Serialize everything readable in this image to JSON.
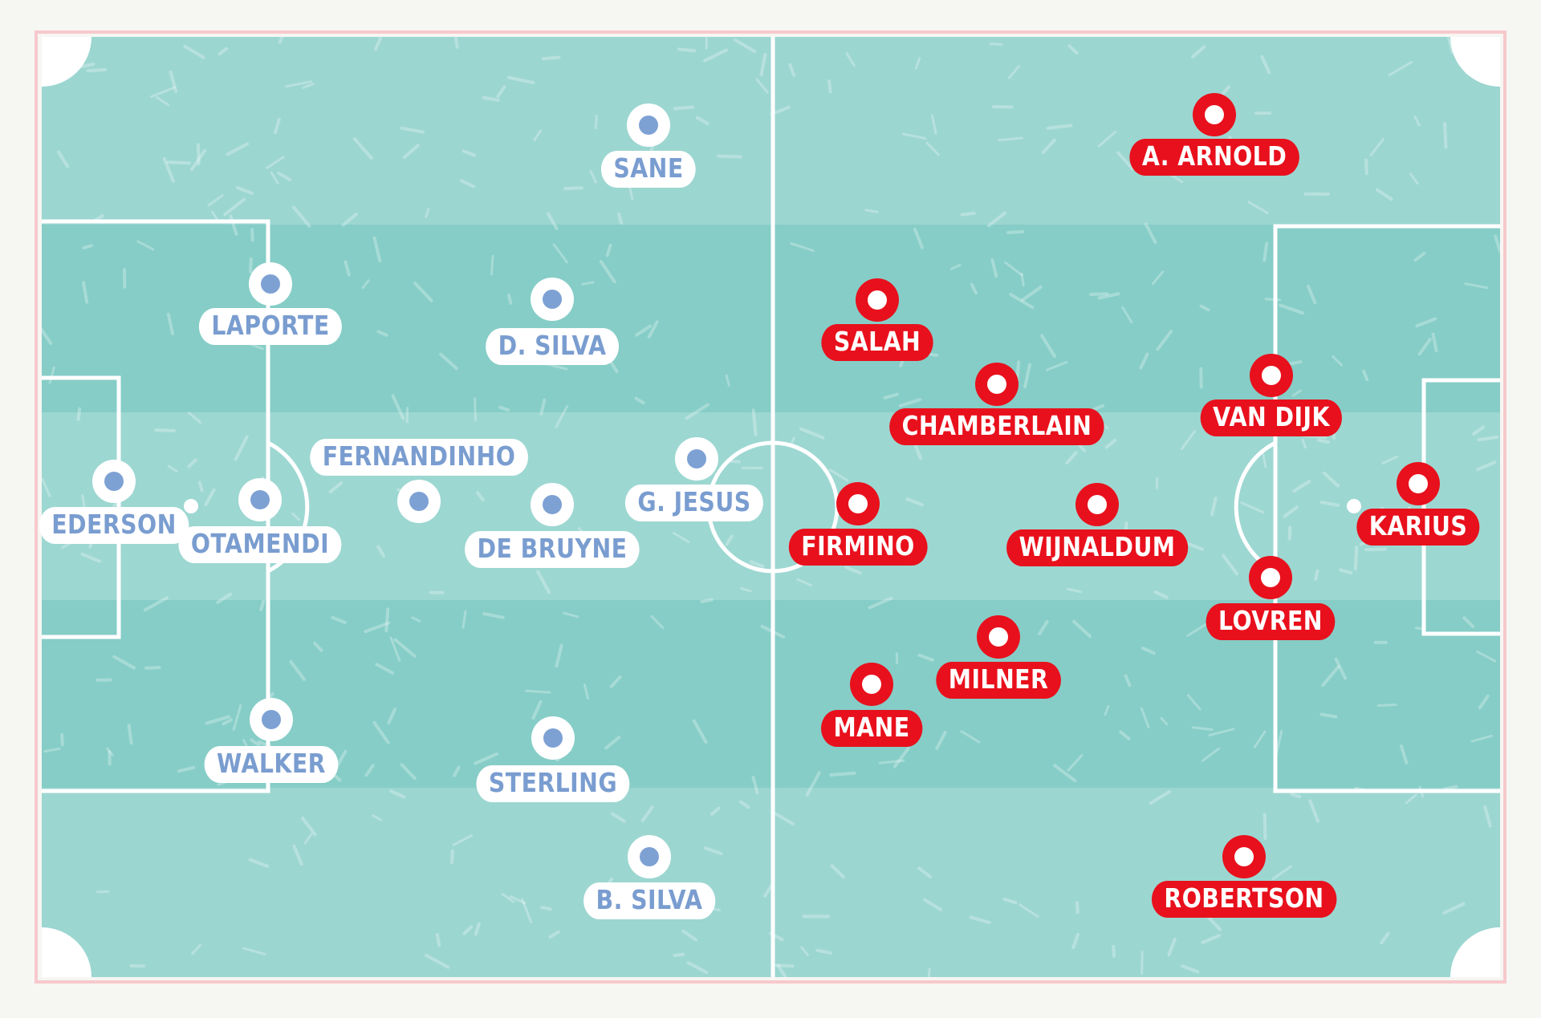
{
  "colors": {
    "pitch_light": "#9cd6d1",
    "pitch_dark": "#86cdc7",
    "frame": "#f7c9cc",
    "home_accent": "#7ea1d4",
    "away_accent": "#e8101c"
  },
  "home_team": {
    "players": [
      {
        "id": "ederson",
        "name": "EDERSON"
      },
      {
        "id": "laporte",
        "name": "LAPORTE"
      },
      {
        "id": "otamendi",
        "name": "OTAMENDI"
      },
      {
        "id": "walker",
        "name": "WALKER"
      },
      {
        "id": "fernandinho",
        "name": "FERNANDINHO"
      },
      {
        "id": "d-silva",
        "name": "D. SILVA"
      },
      {
        "id": "de-bruyne",
        "name": "DE BRUYNE"
      },
      {
        "id": "sterling",
        "name": "STERLING"
      },
      {
        "id": "sane",
        "name": "SANE"
      },
      {
        "id": "b-silva",
        "name": "B. SILVA"
      },
      {
        "id": "g-jesus",
        "name": "G. JESUS"
      }
    ]
  },
  "away_team": {
    "players": [
      {
        "id": "karius",
        "name": "KARIUS"
      },
      {
        "id": "van-dijk",
        "name": "VAN DIJK"
      },
      {
        "id": "lovren",
        "name": "LOVREN"
      },
      {
        "id": "a-arnold",
        "name": "A. ARNOLD"
      },
      {
        "id": "robertson",
        "name": "ROBERTSON"
      },
      {
        "id": "wijnaldum",
        "name": "WIJNALDUM"
      },
      {
        "id": "chamberlain",
        "name": "CHAMBERLAIN"
      },
      {
        "id": "milner",
        "name": "MILNER"
      },
      {
        "id": "salah",
        "name": "SALAH"
      },
      {
        "id": "firmino",
        "name": "FIRMINO"
      },
      {
        "id": "mane",
        "name": "MANE"
      }
    ]
  }
}
